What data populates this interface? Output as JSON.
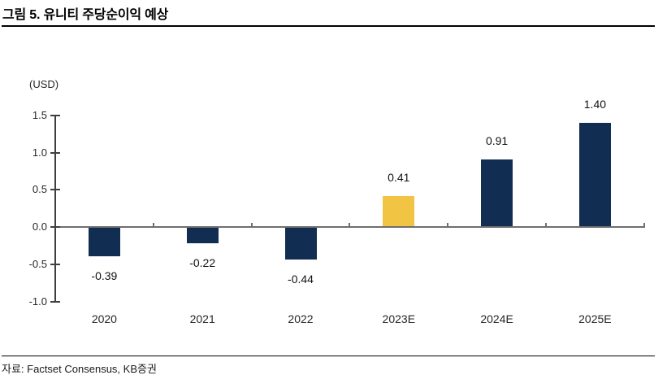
{
  "title": "그림 5. 유니티 주당순이익 예상",
  "source": "자료: Factset Consensus, KB증권",
  "chart_data": {
    "type": "bar",
    "title": "그림 5. 유니티 주당순이익 예상",
    "unit_label": "(USD)",
    "categories": [
      "2020",
      "2021",
      "2022",
      "2023E",
      "2024E",
      "2025E"
    ],
    "values": [
      -0.39,
      -0.22,
      -0.44,
      0.41,
      0.91,
      1.4
    ],
    "value_labels": [
      "-0.39",
      "-0.22",
      "-0.44",
      "0.41",
      "0.91",
      "1.40"
    ],
    "bar_colors": [
      "#122D52",
      "#122D52",
      "#122D52",
      "#F2C444",
      "#122D52",
      "#122D52"
    ],
    "xlabel": "",
    "ylabel": "(USD)",
    "ylim": [
      -1.0,
      1.5
    ],
    "yticks": [
      1.5,
      1.0,
      0.5,
      0.0,
      -0.5,
      -1.0
    ],
    "ytick_labels": [
      "1.5",
      "1.0",
      "0.5",
      "0.0",
      "-0.5",
      "-1.0"
    ],
    "grid": false,
    "legend": "none",
    "colors": {
      "bar_default": "#122D52",
      "bar_highlight": "#F2C444",
      "axis": "#3f3f3f",
      "zero_line": "#6e6e6e",
      "text": "#262626",
      "title": "#000000"
    }
  }
}
